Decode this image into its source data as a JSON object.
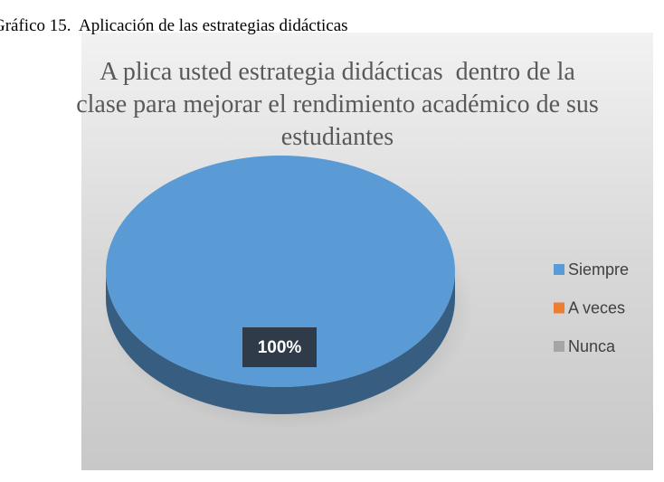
{
  "header": {
    "caption": "Gráfico 15.  Aplicación de las estrategias didácticas"
  },
  "chart_data": {
    "type": "pie",
    "title": "A plica usted estrategia didácticas  dentro de la clase para mejorar el rendimiento académico de sus estudiantes",
    "categories": [
      "Siempre",
      "A veces",
      "Nunca"
    ],
    "values": [
      100,
      0,
      0
    ],
    "value_labels": [
      "100%",
      null,
      null
    ],
    "colors": [
      "#5b9bd5",
      "#ed7d31",
      "#a5a5a5"
    ],
    "legend": "right"
  }
}
